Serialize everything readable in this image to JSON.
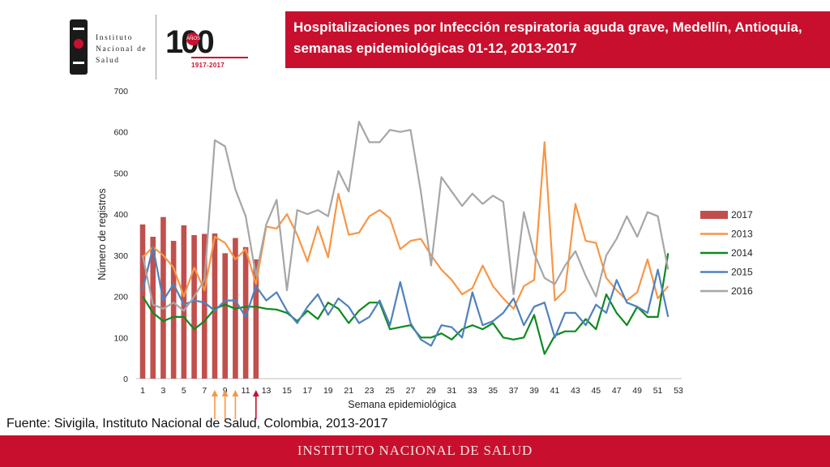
{
  "header": {
    "title": "Hospitalizaciones por Infección respiratoria aguda grave, Medellín, Antioquia, semanas epidemiológicas 01-12, 2013-2017",
    "institution": "INSTITUTO NACIONAL DE SALUD",
    "centenary_number": "100",
    "centenary_badge": "AÑOS",
    "centenary_years": "1917-2017"
  },
  "logo_lines": [
    "Instituto",
    "Nacional de",
    "Salud"
  ],
  "source": "Fuente: Sivigila, Instituto Nacional de Salud, Colombia, 2013-2017",
  "footer": {
    "text": "INSTITUTO NACIONAL DE SALUD"
  },
  "colors": {
    "brand_red": "#c8102e",
    "bar_2017": "#c0504d",
    "line_2013": "#f79646",
    "line_2014": "#0d8a1e",
    "line_2015": "#4f81bd",
    "line_2016": "#a6a6a6"
  },
  "chart_data": {
    "type": "bar+line",
    "title": "Hospitalizaciones por Infección respiratoria aguda grave, Medellín, Antioquia, semanas epidemiológicas 01-12, 2013-2017",
    "xlabel": "Semana epidemiológica",
    "ylabel": "Número de registros",
    "ylim": [
      0,
      700
    ],
    "yticks": [
      0,
      100,
      200,
      300,
      400,
      500,
      600,
      700
    ],
    "xlim": [
      1,
      53
    ],
    "xticks": [
      1,
      3,
      5,
      7,
      9,
      11,
      13,
      15,
      17,
      19,
      21,
      23,
      25,
      27,
      29,
      31,
      33,
      35,
      37,
      39,
      41,
      43,
      45,
      47,
      49,
      51,
      53
    ],
    "legend_position": "right",
    "bar_series": {
      "name": "2017",
      "x": [
        1,
        2,
        3,
        4,
        5,
        6,
        7,
        8,
        9,
        10,
        11,
        12
      ],
      "values": [
        375,
        345,
        393,
        335,
        373,
        349,
        352,
        353,
        305,
        342,
        320,
        290
      ]
    },
    "line_series": [
      {
        "name": "2013",
        "color_key": "line_2013",
        "values": [
          295,
          320,
          300,
          270,
          200,
          270,
          215,
          345,
          330,
          290,
          315,
          230,
          370,
          365,
          400,
          350,
          285,
          370,
          295,
          450,
          350,
          355,
          395,
          410,
          390,
          315,
          335,
          340,
          300,
          265,
          240,
          205,
          220,
          275,
          225,
          195,
          170,
          225,
          240,
          575,
          190,
          215,
          425,
          335,
          330,
          245,
          215,
          190,
          210,
          290,
          195,
          225
        ]
      },
      {
        "name": "2014",
        "color_key": "line_2014",
        "values": [
          200,
          160,
          140,
          150,
          150,
          120,
          140,
          170,
          180,
          170,
          175,
          175,
          170,
          168,
          160,
          140,
          165,
          145,
          185,
          170,
          135,
          165,
          185,
          185,
          120,
          125,
          130,
          100,
          100,
          110,
          95,
          120,
          130,
          120,
          135,
          100,
          95,
          100,
          155,
          60,
          105,
          115,
          115,
          145,
          120,
          205,
          160,
          130,
          175,
          150,
          150,
          305
        ]
      },
      {
        "name": "2015",
        "color_key": "line_2015",
        "values": [
          215,
          320,
          190,
          230,
          180,
          190,
          185,
          165,
          190,
          190,
          150,
          225,
          190,
          210,
          165,
          135,
          175,
          205,
          155,
          195,
          175,
          135,
          150,
          190,
          130,
          235,
          135,
          95,
          80,
          130,
          125,
          100,
          210,
          130,
          140,
          160,
          195,
          130,
          175,
          185,
          100,
          160,
          160,
          130,
          180,
          160,
          240,
          185,
          175,
          160,
          265,
          150
        ]
      },
      {
        "name": "2016",
        "color_key": "line_2016",
        "values": [
          300,
          180,
          170,
          185,
          165,
          200,
          240,
          580,
          565,
          460,
          395,
          250,
          375,
          435,
          215,
          410,
          400,
          410,
          395,
          505,
          455,
          625,
          575,
          575,
          605,
          600,
          605,
          455,
          275,
          490,
          455,
          420,
          450,
          425,
          445,
          430,
          205,
          405,
          305,
          245,
          230,
          275,
          310,
          250,
          200,
          300,
          340,
          395,
          345,
          405,
          395,
          265
        ]
      }
    ],
    "arrows": [
      {
        "week": 8,
        "color_key": "line_2013"
      },
      {
        "week": 9,
        "color_key": "line_2013"
      },
      {
        "week": 10,
        "color_key": "line_2013"
      },
      {
        "week": 12,
        "color_key": "brand_red"
      }
    ]
  }
}
